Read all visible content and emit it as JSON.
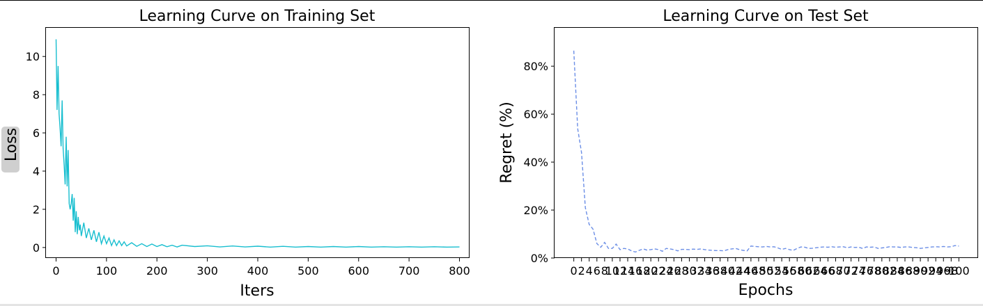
{
  "chart_data": [
    {
      "type": "line",
      "title": "Learning Curve on Training Set",
      "xlabel": "Iters",
      "ylabel": "Loss",
      "xlim": [
        -20,
        820
      ],
      "ylim": [
        -0.55,
        11.5
      ],
      "xticks": [
        0,
        100,
        200,
        300,
        400,
        500,
        600,
        700,
        800
      ],
      "yticks": [
        0,
        2,
        4,
        6,
        8,
        10
      ],
      "xtick_labels": [
        "0",
        "100",
        "200",
        "300",
        "400",
        "500",
        "600",
        "700",
        "800"
      ],
      "ytick_labels": [
        "0",
        "2",
        "4",
        "6",
        "8",
        "10"
      ],
      "grid": false,
      "color": "#17becf",
      "series": [
        {
          "x": [
            0,
            2,
            4,
            6,
            8,
            10,
            12,
            14,
            16,
            18,
            20,
            22,
            24,
            26,
            28,
            30,
            32,
            34,
            36,
            38,
            40,
            42,
            44,
            46,
            48,
            50,
            55,
            60,
            65,
            70,
            75,
            80,
            85,
            90,
            95,
            100,
            105,
            110,
            115,
            120,
            125,
            130,
            135,
            140,
            150,
            160,
            170,
            180,
            190,
            200,
            210,
            220,
            230,
            240,
            250,
            275,
            300,
            325,
            350,
            375,
            400,
            425,
            450,
            475,
            500,
            525,
            550,
            575,
            600,
            625,
            650,
            675,
            700,
            725,
            750,
            775,
            800
          ],
          "values": [
            10.9,
            7.2,
            9.5,
            7.0,
            6.2,
            5.3,
            7.7,
            5.2,
            4.3,
            3.3,
            5.8,
            3.2,
            5.1,
            2.3,
            2.0,
            2.3,
            2.8,
            1.4,
            2.6,
            0.8,
            1.9,
            0.7,
            1.6,
            0.9,
            1.2,
            0.6,
            1.3,
            0.5,
            1.0,
            0.4,
            0.9,
            0.3,
            0.8,
            0.2,
            0.6,
            0.2,
            0.5,
            0.1,
            0.4,
            0.1,
            0.35,
            0.1,
            0.3,
            0.08,
            0.25,
            0.06,
            0.2,
            0.05,
            0.18,
            0.05,
            0.15,
            0.04,
            0.12,
            0.03,
            0.12,
            0.05,
            0.09,
            0.03,
            0.08,
            0.03,
            0.07,
            0.02,
            0.06,
            0.02,
            0.05,
            0.02,
            0.05,
            0.02,
            0.05,
            0.02,
            0.04,
            0.02,
            0.04,
            0.02,
            0.04,
            0.02,
            0.03
          ]
        }
      ]
    },
    {
      "type": "line",
      "title": "Learning Curve on Test Set",
      "xlabel": "Epochs",
      "ylabel": "Regret (%)",
      "xlim": [
        -5,
        105
      ],
      "ylim": [
        0,
        0.96
      ],
      "xticks": [
        0,
        2,
        4,
        6,
        8,
        10,
        12,
        14,
        16,
        18,
        20,
        22,
        24,
        26,
        28,
        30,
        32,
        34,
        36,
        38,
        40,
        42,
        44,
        46,
        48,
        50,
        52,
        54,
        56,
        58,
        60,
        62,
        64,
        66,
        68,
        70,
        72,
        74,
        76,
        78,
        80,
        82,
        84,
        86,
        88,
        90,
        92,
        94,
        96,
        98,
        100
      ],
      "xtick_labels": [
        "0",
        "2",
        "4",
        "6",
        "8",
        "10",
        "12",
        "14",
        "16",
        "18",
        "20",
        "22",
        "24",
        "26",
        "28",
        "30",
        "32",
        "34",
        "36",
        "38",
        "40",
        "42",
        "44",
        "46",
        "48",
        "50",
        "52",
        "54",
        "56",
        "58",
        "60",
        "62",
        "64",
        "66",
        "68",
        "70",
        "72",
        "74",
        "76",
        "78",
        "80",
        "82",
        "84",
        "86",
        "88",
        "90",
        "92",
        "94",
        "96",
        "98",
        "100"
      ],
      "yticks": [
        0,
        0.2,
        0.4,
        0.6,
        0.8
      ],
      "ytick_labels": [
        "0%",
        "20%",
        "40%",
        "60%",
        "80%"
      ],
      "grid": false,
      "color": "#6b8ee6",
      "series": [
        {
          "x": [
            0,
            1,
            2,
            3,
            4,
            5,
            6,
            7,
            8,
            9,
            10,
            11,
            12,
            13,
            14,
            15,
            16,
            17,
            18,
            19,
            20,
            21,
            22,
            23,
            24,
            25,
            26,
            27,
            28,
            29,
            30,
            31,
            32,
            33,
            34,
            35,
            36,
            37,
            38,
            39,
            40,
            41,
            42,
            43,
            44,
            45,
            46,
            47,
            48,
            49,
            50,
            51,
            52,
            53,
            54,
            55,
            56,
            57,
            58,
            59,
            60,
            61,
            62,
            63,
            64,
            65,
            66,
            67,
            68,
            69,
            70,
            71,
            72,
            73,
            74,
            75,
            76,
            77,
            78,
            79,
            80,
            81,
            82,
            83,
            84,
            85,
            86,
            87,
            88,
            89,
            90,
            91,
            92,
            93,
            94,
            95,
            96,
            97,
            98,
            99,
            100
          ],
          "values": [
            0.865,
            0.54,
            0.44,
            0.21,
            0.14,
            0.12,
            0.06,
            0.045,
            0.065,
            0.04,
            0.04,
            0.058,
            0.035,
            0.04,
            0.038,
            0.03,
            0.025,
            0.032,
            0.038,
            0.033,
            0.035,
            0.038,
            0.035,
            0.028,
            0.04,
            0.038,
            0.035,
            0.03,
            0.036,
            0.036,
            0.035,
            0.037,
            0.036,
            0.038,
            0.035,
            0.033,
            0.032,
            0.031,
            0.031,
            0.03,
            0.035,
            0.038,
            0.04,
            0.035,
            0.032,
            0.03,
            0.05,
            0.048,
            0.047,
            0.046,
            0.048,
            0.046,
            0.047,
            0.042,
            0.036,
            0.04,
            0.035,
            0.032,
            0.04,
            0.046,
            0.045,
            0.04,
            0.041,
            0.043,
            0.045,
            0.046,
            0.045,
            0.047,
            0.045,
            0.046,
            0.047,
            0.043,
            0.046,
            0.044,
            0.045,
            0.04,
            0.046,
            0.045,
            0.046,
            0.04,
            0.042,
            0.044,
            0.047,
            0.046,
            0.046,
            0.044,
            0.046,
            0.046,
            0.044,
            0.043,
            0.04,
            0.042,
            0.044,
            0.046,
            0.047,
            0.046,
            0.048,
            0.046,
            0.047,
            0.052,
            0.05
          ]
        }
      ]
    }
  ]
}
